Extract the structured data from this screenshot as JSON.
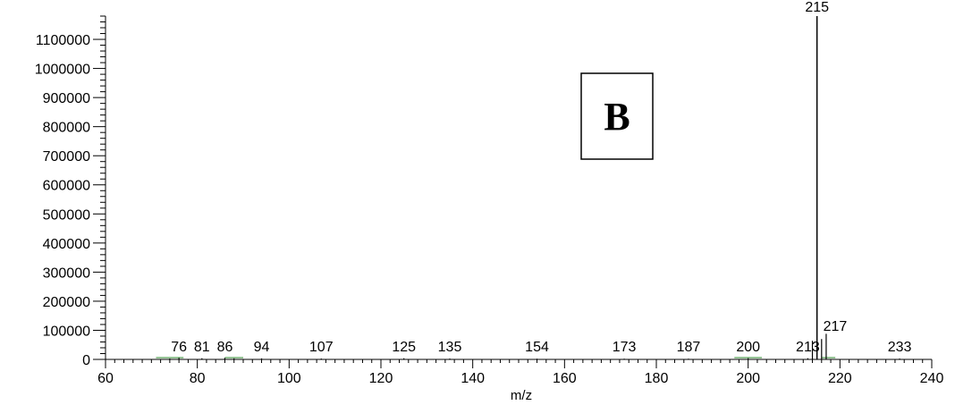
{
  "chart_data": {
    "type": "bar",
    "subtype": "mass-spectrum",
    "panel_label": "B",
    "xlabel": "m/z",
    "ylabel": "",
    "xlim": [
      60,
      240
    ],
    "ylim": [
      0,
      1180000
    ],
    "x_ticks": [
      60,
      80,
      100,
      120,
      140,
      160,
      180,
      200,
      220,
      240
    ],
    "y_ticks": [
      0,
      100000,
      200000,
      300000,
      400000,
      500000,
      600000,
      700000,
      800000,
      900000,
      1000000,
      1100000
    ],
    "series": [
      {
        "peaks": [
          {
            "mz": 74,
            "intensity": 3000
          },
          {
            "mz": 76,
            "intensity": 5000
          },
          {
            "mz": 81,
            "intensity": 4000
          },
          {
            "mz": 86,
            "intensity": 5000
          },
          {
            "mz": 88,
            "intensity": 3500
          },
          {
            "mz": 94,
            "intensity": 3500
          },
          {
            "mz": 107,
            "intensity": 3000
          },
          {
            "mz": 125,
            "intensity": 4000
          },
          {
            "mz": 135,
            "intensity": 3000
          },
          {
            "mz": 154,
            "intensity": 2500
          },
          {
            "mz": 173,
            "intensity": 2500
          },
          {
            "mz": 187,
            "intensity": 2500
          },
          {
            "mz": 200,
            "intensity": 4000
          },
          {
            "mz": 213,
            "intensity": 4000
          },
          {
            "mz": 214,
            "intensity": 64000
          },
          {
            "mz": 215,
            "intensity": 1180000
          },
          {
            "mz": 216,
            "intensity": 70000
          },
          {
            "mz": 217,
            "intensity": 88000
          },
          {
            "mz": 233,
            "intensity": 3000
          }
        ]
      }
    ],
    "peak_labels": [
      {
        "mz": 76,
        "text": "76"
      },
      {
        "mz": 81,
        "text": "81"
      },
      {
        "mz": 86,
        "text": "86"
      },
      {
        "mz": 94,
        "text": "94"
      },
      {
        "mz": 107,
        "text": "107"
      },
      {
        "mz": 125,
        "text": "125"
      },
      {
        "mz": 135,
        "text": "135"
      },
      {
        "mz": 154,
        "text": "154"
      },
      {
        "mz": 173,
        "text": "173"
      },
      {
        "mz": 187,
        "text": "187"
      },
      {
        "mz": 200,
        "text": "200"
      },
      {
        "mz": 213,
        "text": "213"
      },
      {
        "mz": 215,
        "text": "215"
      },
      {
        "mz": 217,
        "text": "217"
      },
      {
        "mz": 233,
        "text": "233"
      }
    ],
    "grid": false,
    "colors": {
      "peak": "#000000",
      "baseline": "#2e8b2e",
      "axis": "#000000"
    }
  }
}
